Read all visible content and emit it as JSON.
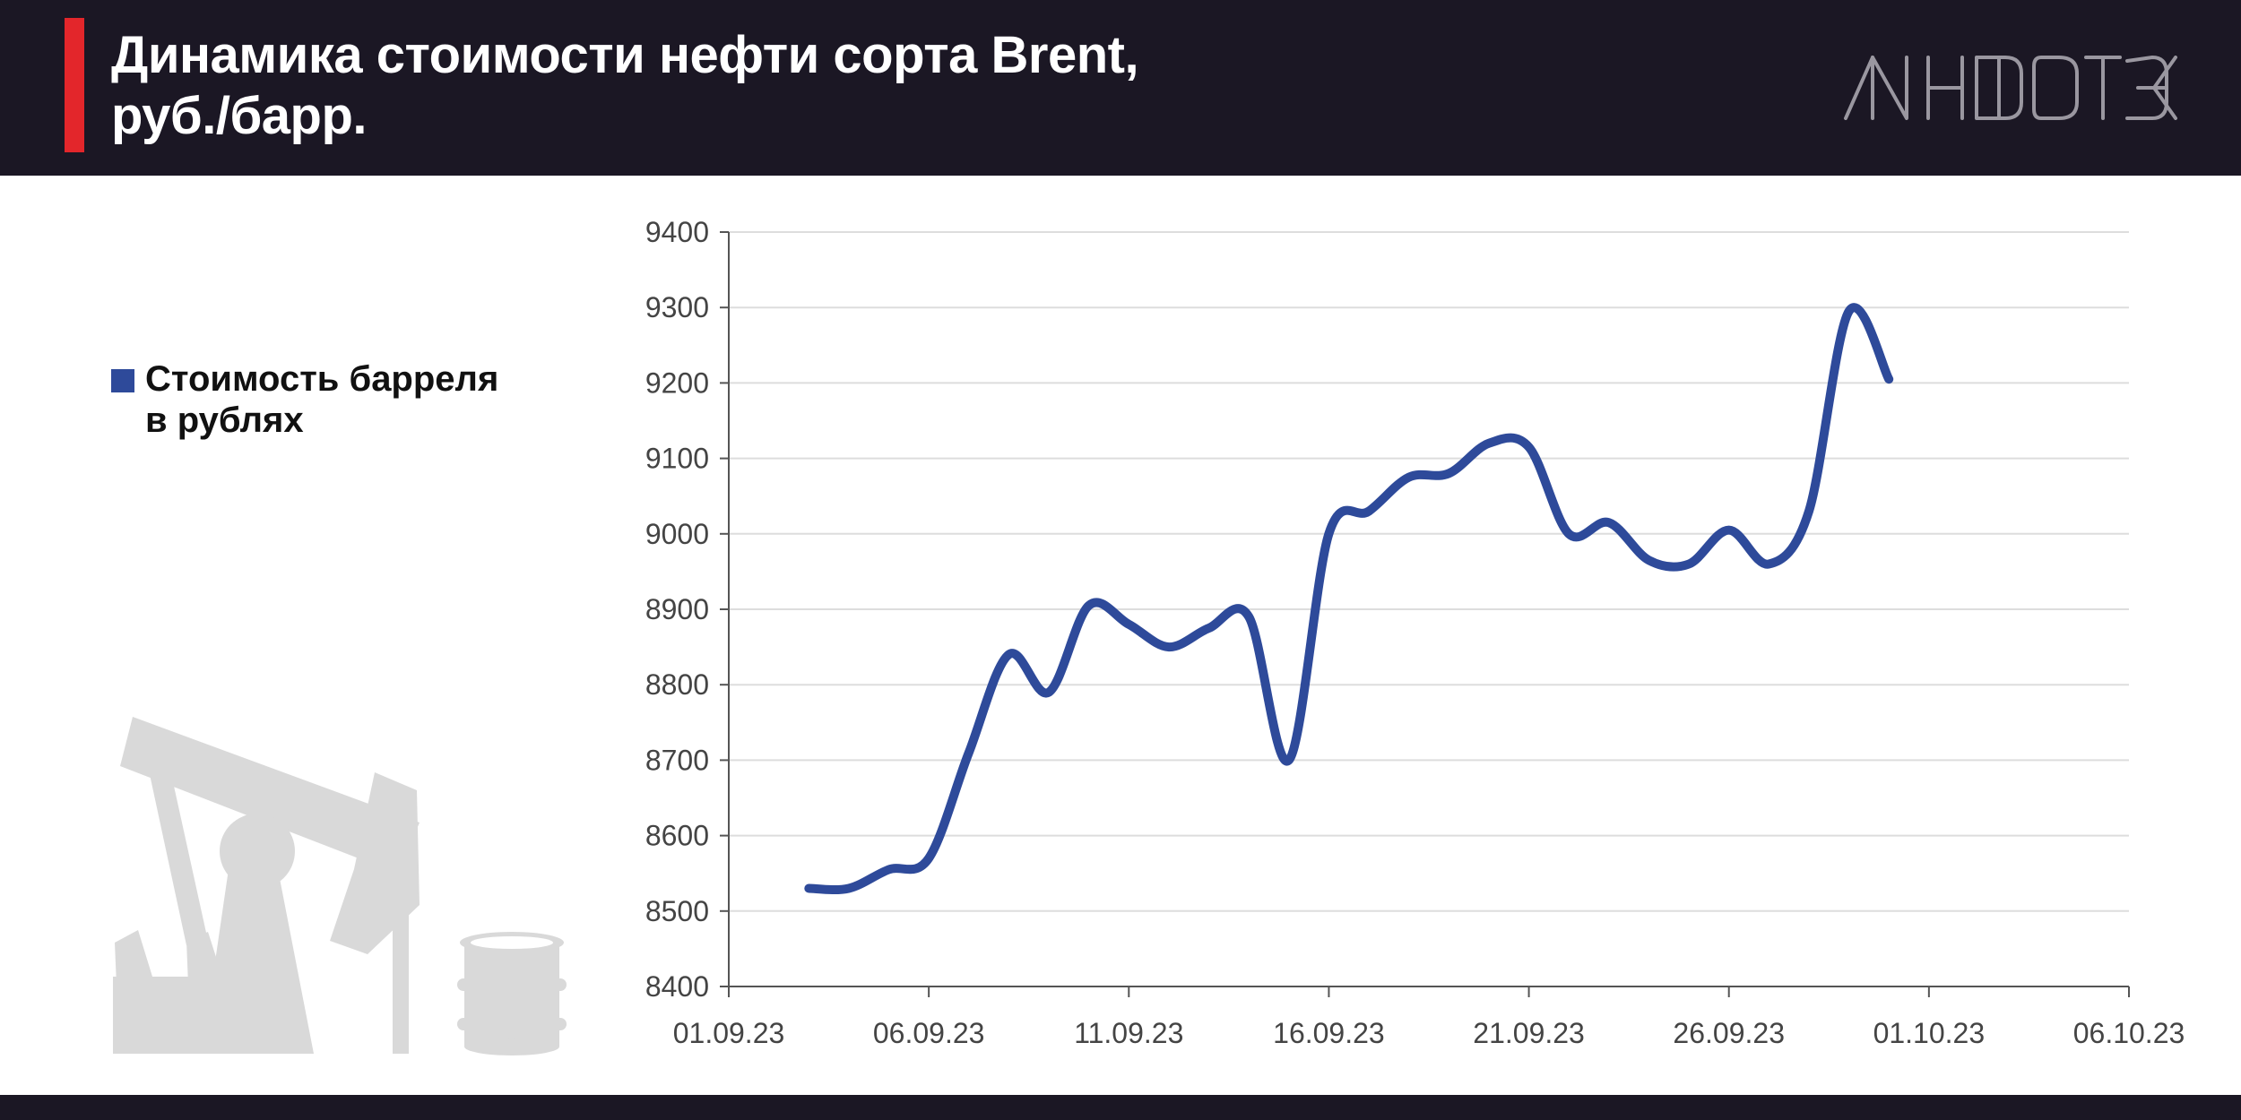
{
  "header": {
    "title": "Динамика стоимости нефти сорта Brent,\nруб./барр.",
    "logo_text": "ИНФОТЭК"
  },
  "colors": {
    "header_bg": "#1b1724",
    "accent": "#e3262b",
    "series": "#2e4a9a",
    "grid": "#dddddd",
    "illustration": "#d9d9d9"
  },
  "legend": {
    "label": "Стоимость барреля\nв рублях"
  },
  "illustration": {
    "icons": [
      "oil-pump-icon",
      "oil-barrel-icon"
    ]
  },
  "chart_data": {
    "type": "line",
    "title": "Динамика стоимости нефти сорта Brent, руб./барр.",
    "xlabel": "",
    "ylabel": "",
    "ylim": [
      8400,
      9400
    ],
    "y_ticks": [
      8400,
      8500,
      8600,
      8700,
      8800,
      8900,
      9000,
      9100,
      9200,
      9300,
      9400
    ],
    "x_ticks": [
      "01.09.23",
      "06.09.23",
      "11.09.23",
      "16.09.23",
      "21.09.23",
      "26.09.23",
      "01.10.23",
      "06.10.23"
    ],
    "x_range": [
      "01.09.23",
      "06.10.23"
    ],
    "grid": "horizontal",
    "legend_position": "left",
    "series": [
      {
        "name": "Стоимость барреля в рублях",
        "points": [
          {
            "x": "03.09.23",
            "y": 8530
          },
          {
            "x": "04.09.23",
            "y": 8530
          },
          {
            "x": "05.09.23",
            "y": 8555
          },
          {
            "x": "06.09.23",
            "y": 8570
          },
          {
            "x": "07.09.23",
            "y": 8710
          },
          {
            "x": "08.09.23",
            "y": 8840
          },
          {
            "x": "09.09.23",
            "y": 8790
          },
          {
            "x": "10.09.23",
            "y": 8905
          },
          {
            "x": "11.09.23",
            "y": 8880
          },
          {
            "x": "12.09.23",
            "y": 8850
          },
          {
            "x": "13.09.23",
            "y": 8875
          },
          {
            "x": "14.09.23",
            "y": 8890
          },
          {
            "x": "15.09.23",
            "y": 8700
          },
          {
            "x": "16.09.23",
            "y": 9000
          },
          {
            "x": "17.09.23",
            "y": 9030
          },
          {
            "x": "18.09.23",
            "y": 9075
          },
          {
            "x": "19.09.23",
            "y": 9080
          },
          {
            "x": "20.09.23",
            "y": 9120
          },
          {
            "x": "21.09.23",
            "y": 9115
          },
          {
            "x": "22.09.23",
            "y": 9000
          },
          {
            "x": "23.09.23",
            "y": 9015
          },
          {
            "x": "24.09.23",
            "y": 8965
          },
          {
            "x": "25.09.23",
            "y": 8960
          },
          {
            "x": "26.09.23",
            "y": 9005
          },
          {
            "x": "27.09.23",
            "y": 8960
          },
          {
            "x": "28.09.23",
            "y": 9030
          },
          {
            "x": "29.09.23",
            "y": 9295
          },
          {
            "x": "30.09.23",
            "y": 9205
          }
        ]
      }
    ]
  }
}
